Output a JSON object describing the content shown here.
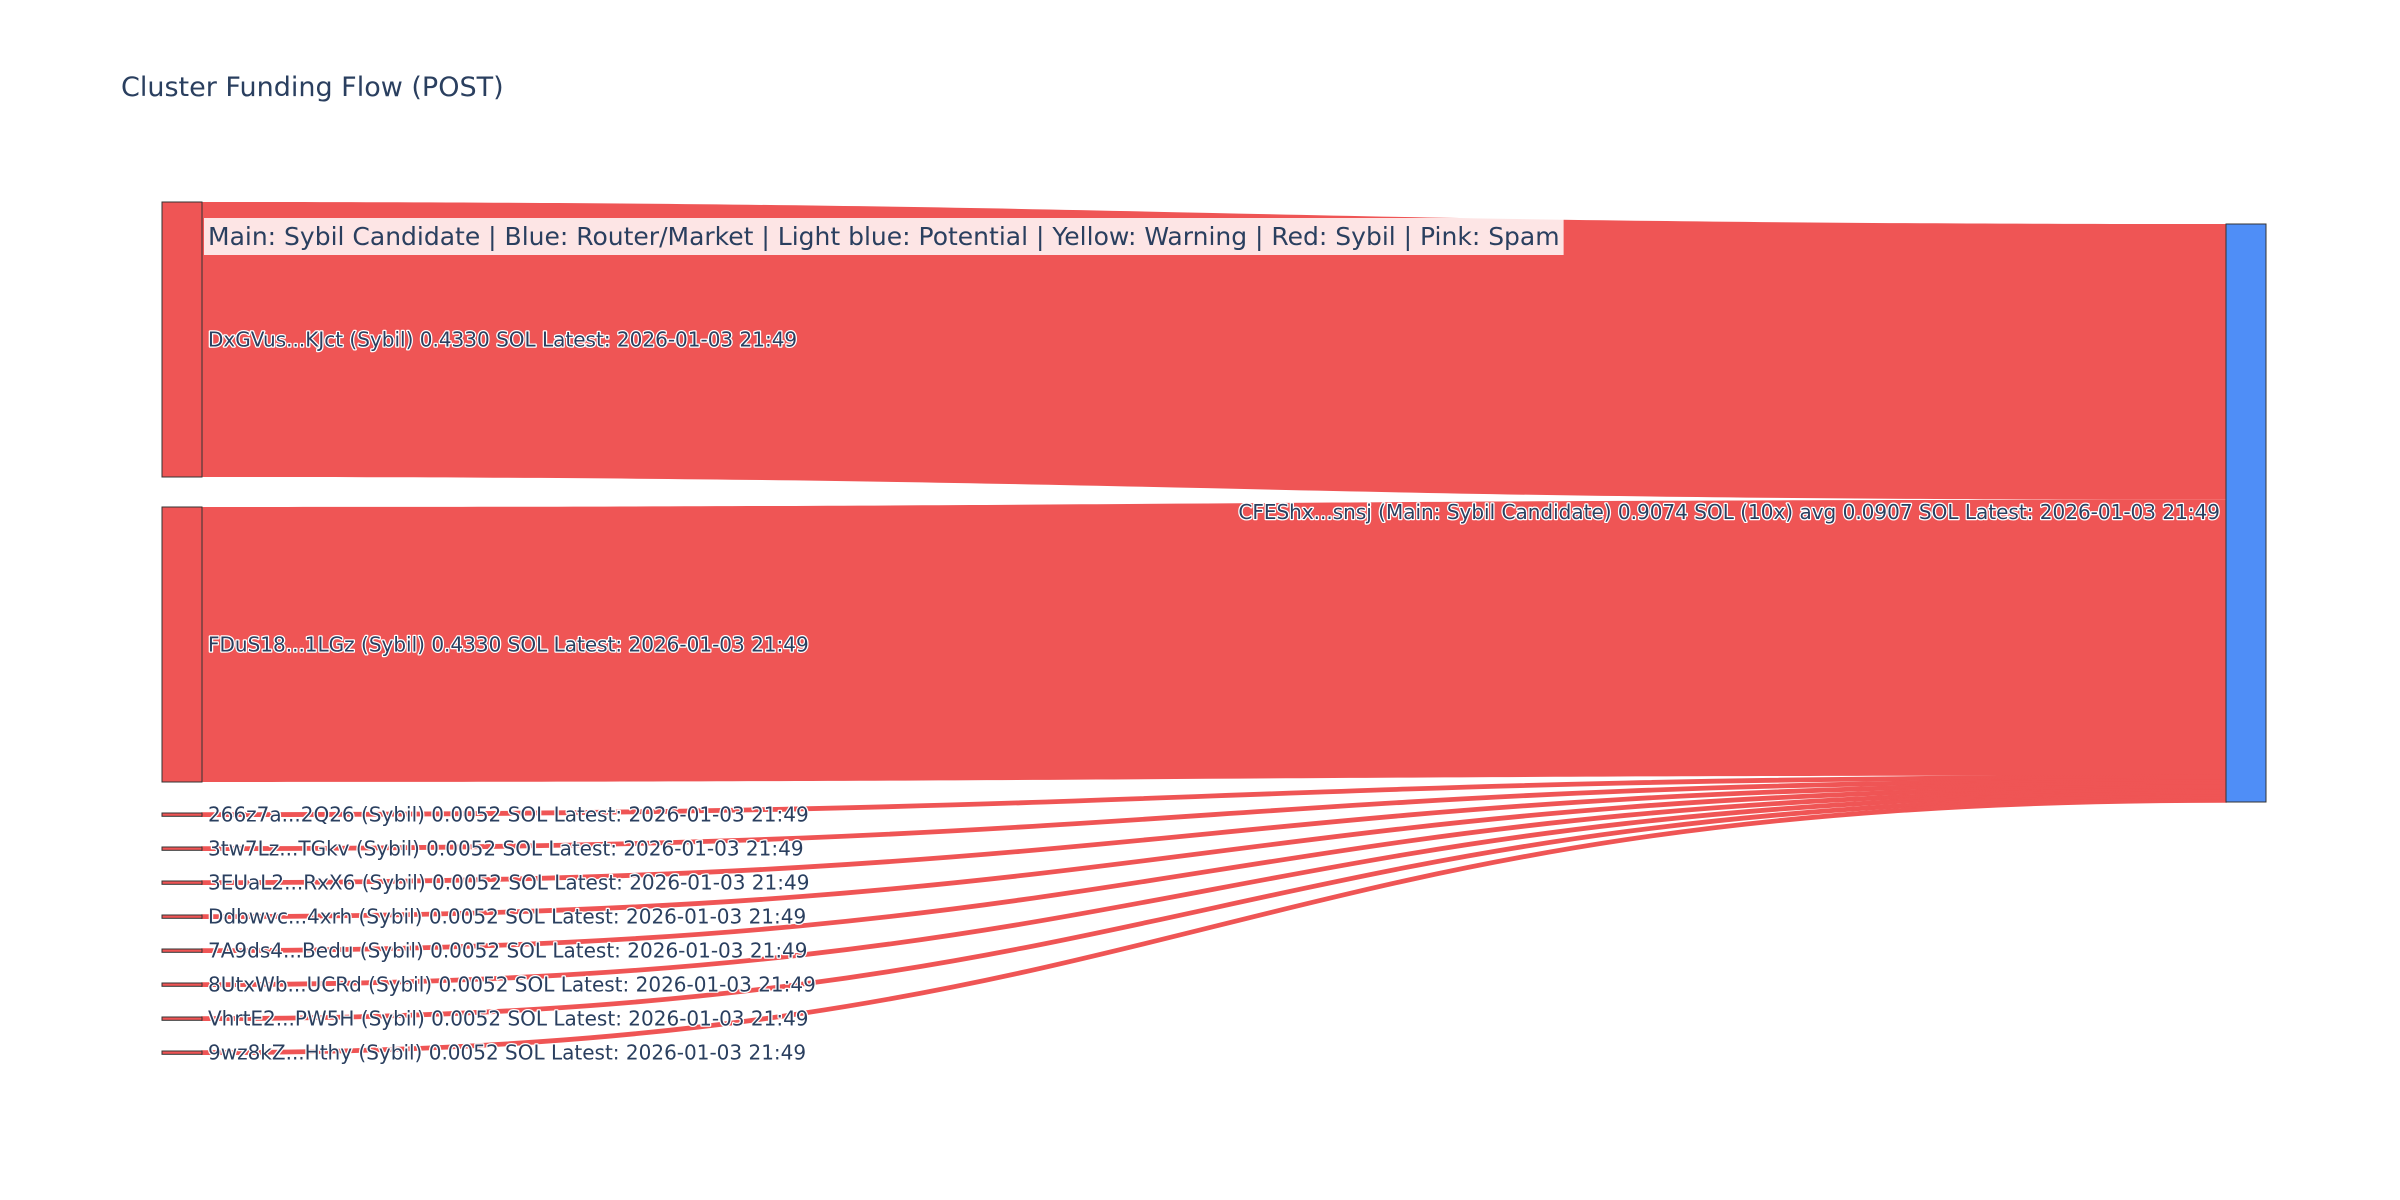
{
  "title": "Cluster Funding Flow (POST)",
  "legend": "Main: Sybil Candidate  |  Blue: Router/Market | Light blue: Potential | Yellow: Warning | Red: Sybil | Pink: Spam",
  "colors": {
    "sybil": "#ef5555",
    "router": "#4f8ef7",
    "node_border": "#333333",
    "text": "#2a3f5f"
  },
  "target": {
    "id": "target",
    "label": "CFEShx...snsj (Main: Sybil Candidate) 0.9074 SOL (10x) avg 0.0907 SOL Latest: 2026-01-03 21:49",
    "color_key": "router"
  },
  "sources": [
    {
      "id": "s1",
      "label": "DxGVus...KJct (Sybil) 0.4330 SOL Latest: 2026-01-03 21:49",
      "value": 0.433
    },
    {
      "id": "s2",
      "label": "FDuS18...1LGz (Sybil) 0.4330 SOL Latest: 2026-01-03 21:49",
      "value": 0.433
    },
    {
      "id": "s3",
      "label": "266z7a...2Q26 (Sybil) 0.0052 SOL Latest: 2026-01-03 21:49",
      "value": 0.0052
    },
    {
      "id": "s4",
      "label": "3tw7Lz...TGkv (Sybil) 0.0052 SOL Latest: 2026-01-03 21:49",
      "value": 0.0052
    },
    {
      "id": "s5",
      "label": "3EUaL2...RxX6 (Sybil) 0.0052 SOL Latest: 2026-01-03 21:49",
      "value": 0.0052
    },
    {
      "id": "s6",
      "label": "Ddbwvc...4xrh (Sybil) 0.0052 SOL Latest: 2026-01-03 21:49",
      "value": 0.0052
    },
    {
      "id": "s7",
      "label": "7A9ds4...Bedu (Sybil) 0.0052 SOL Latest: 2026-01-03 21:49",
      "value": 0.0052
    },
    {
      "id": "s8",
      "label": "8UtxWb...UCRd (Sybil) 0.0052 SOL Latest: 2026-01-03 21:49",
      "value": 0.0052
    },
    {
      "id": "s9",
      "label": "VhrtE2...PW5H (Sybil) 0.0052 SOL Latest: 2026-01-03 21:49",
      "value": 0.0052
    },
    {
      "id": "s10",
      "label": "9wz8kZ...Hthy (Sybil) 0.0052 SOL Latest: 2026-01-03 21:49",
      "value": 0.0052
    }
  ]
}
